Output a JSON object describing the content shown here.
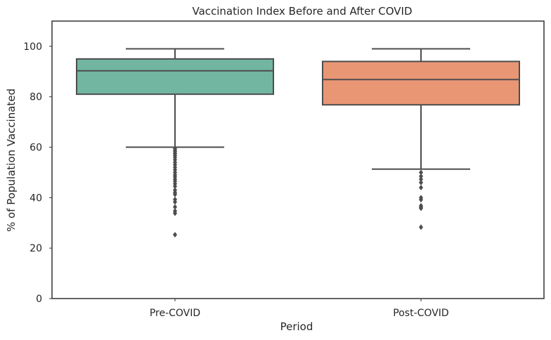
{
  "chart_data": {
    "type": "box",
    "title": "Vaccination Index Before and After COVID",
    "xlabel": "Period",
    "ylabel": "% of Population Vaccinated",
    "categories": [
      "Pre-COVID",
      "Post-COVID"
    ],
    "ylim": [
      0,
      110
    ],
    "yticks": [
      0,
      20,
      40,
      60,
      80,
      100
    ],
    "grid": false,
    "series": [
      {
        "category": "Pre-COVID",
        "color": "#72b6a1",
        "whisker_low": 60,
        "q1": 81,
        "median": 90.3,
        "q3": 95,
        "whisker_high": 99,
        "outliers": [
          59.5,
          58.8,
          58.2,
          57.5,
          56.8,
          56,
          55,
          54,
          53,
          52,
          51,
          50,
          49,
          48.2,
          47.3,
          46.5,
          45.5,
          44.5,
          43,
          42,
          41.3,
          39.3,
          38.3,
          36.3,
          34.7,
          33.8,
          25.3
        ]
      },
      {
        "category": "Post-COVID",
        "color": "#e99675",
        "whisker_low": 51.3,
        "q1": 76.8,
        "median": 86.8,
        "q3": 94,
        "whisker_high": 99,
        "outliers": [
          50,
          48.5,
          47.3,
          46,
          44,
          40,
          39.2,
          36.8,
          36.2,
          35.8,
          28.3
        ]
      }
    ]
  }
}
